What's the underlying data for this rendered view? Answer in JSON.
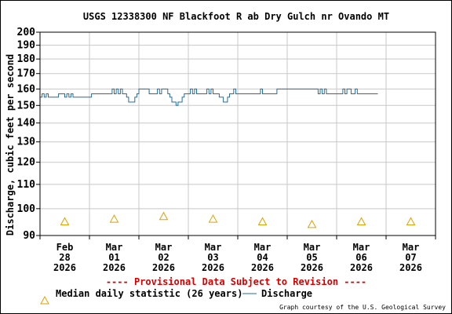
{
  "chart_data": {
    "type": "line",
    "title": "USGS 12338300 NF Blackfoot R ab Dry Gulch nr Ovando MT",
    "ylabel": "Discharge, cubic feet per second",
    "xlabel": "",
    "scale": "log",
    "ylim": [
      90,
      200
    ],
    "yticks": [
      90,
      100,
      110,
      120,
      130,
      140,
      150,
      160,
      170,
      180,
      190,
      200
    ],
    "ytick_labels": [
      "90",
      "100",
      "110",
      "120",
      "130",
      "140",
      "150",
      "160",
      "170",
      "180",
      "190",
      "200"
    ],
    "xlim": [
      "2026-02-28",
      "2026-03-08"
    ],
    "xticks": [
      {
        "lines": [
          "Feb",
          "28",
          "2026"
        ]
      },
      {
        "lines": [
          "Mar",
          "01",
          "2026"
        ]
      },
      {
        "lines": [
          "Mar",
          "02",
          "2026"
        ]
      },
      {
        "lines": [
          "Mar",
          "03",
          "2026"
        ]
      },
      {
        "lines": [
          "Mar",
          "04",
          "2026"
        ]
      },
      {
        "lines": [
          "Mar",
          "05",
          "2026"
        ]
      },
      {
        "lines": [
          "Mar",
          "06",
          "2026"
        ]
      },
      {
        "lines": [
          "Mar",
          "07",
          "2026"
        ]
      }
    ],
    "grid": true,
    "series": [
      {
        "name": "Discharge",
        "color": "#1f6f9f",
        "points": [
          [
            "2026-02-28T00:00",
            155
          ],
          [
            "2026-02-28T01:00",
            157
          ],
          [
            "2026-02-28T02:00",
            155
          ],
          [
            "2026-02-28T03:00",
            157
          ],
          [
            "2026-02-28T04:00",
            155
          ],
          [
            "2026-02-28T05:00",
            155
          ],
          [
            "2026-02-28T06:00",
            155
          ],
          [
            "2026-02-28T07:00",
            155
          ],
          [
            "2026-02-28T08:00",
            155
          ],
          [
            "2026-02-28T09:00",
            157
          ],
          [
            "2026-02-28T10:00",
            157
          ],
          [
            "2026-02-28T11:00",
            157
          ],
          [
            "2026-02-28T12:00",
            155
          ],
          [
            "2026-02-28T13:00",
            157
          ],
          [
            "2026-02-28T14:00",
            155
          ],
          [
            "2026-02-28T15:00",
            157
          ],
          [
            "2026-02-28T16:00",
            155
          ],
          [
            "2026-02-28T17:00",
            155
          ],
          [
            "2026-02-28T18:00",
            155
          ],
          [
            "2026-02-28T20:00",
            155
          ],
          [
            "2026-02-28T22:00",
            155
          ],
          [
            "2026-03-01T00:00",
            155
          ],
          [
            "2026-03-01T01:00",
            157
          ],
          [
            "2026-03-01T03:00",
            157
          ],
          [
            "2026-03-01T06:00",
            157
          ],
          [
            "2026-03-01T08:00",
            157
          ],
          [
            "2026-03-01T10:00",
            157
          ],
          [
            "2026-03-01T11:00",
            160
          ],
          [
            "2026-03-01T12:00",
            157
          ],
          [
            "2026-03-01T13:00",
            160
          ],
          [
            "2026-03-01T14:00",
            157
          ],
          [
            "2026-03-01T15:00",
            160
          ],
          [
            "2026-03-01T16:00",
            157
          ],
          [
            "2026-03-01T17:00",
            157
          ],
          [
            "2026-03-01T18:00",
            155
          ],
          [
            "2026-03-01T19:00",
            152
          ],
          [
            "2026-03-01T20:00",
            152
          ],
          [
            "2026-03-01T21:00",
            152
          ],
          [
            "2026-03-01T22:00",
            155
          ],
          [
            "2026-03-01T23:00",
            157
          ],
          [
            "2026-03-02T00:00",
            160
          ],
          [
            "2026-03-02T02:00",
            160
          ],
          [
            "2026-03-02T04:00",
            160
          ],
          [
            "2026-03-02T05:00",
            157
          ],
          [
            "2026-03-02T06:00",
            157
          ],
          [
            "2026-03-02T07:00",
            157
          ],
          [
            "2026-03-02T08:00",
            157
          ],
          [
            "2026-03-02T09:00",
            160
          ],
          [
            "2026-03-02T10:00",
            157
          ],
          [
            "2026-03-02T11:00",
            160
          ],
          [
            "2026-03-02T12:00",
            160
          ],
          [
            "2026-03-02T13:00",
            160
          ],
          [
            "2026-03-02T14:00",
            157
          ],
          [
            "2026-03-02T15:00",
            155
          ],
          [
            "2026-03-02T16:00",
            152
          ],
          [
            "2026-03-02T17:00",
            152
          ],
          [
            "2026-03-02T18:00",
            150
          ],
          [
            "2026-03-02T19:00",
            152
          ],
          [
            "2026-03-02T20:00",
            152
          ],
          [
            "2026-03-02T21:00",
            155
          ],
          [
            "2026-03-02T22:00",
            157
          ],
          [
            "2026-03-03T00:00",
            157
          ],
          [
            "2026-03-03T01:00",
            160
          ],
          [
            "2026-03-03T02:00",
            157
          ],
          [
            "2026-03-03T03:00",
            160
          ],
          [
            "2026-03-03T04:00",
            157
          ],
          [
            "2026-03-03T05:00",
            157
          ],
          [
            "2026-03-03T06:00",
            157
          ],
          [
            "2026-03-03T08:00",
            157
          ],
          [
            "2026-03-03T09:00",
            160
          ],
          [
            "2026-03-03T10:00",
            157
          ],
          [
            "2026-03-03T11:00",
            160
          ],
          [
            "2026-03-03T12:00",
            157
          ],
          [
            "2026-03-03T13:00",
            157
          ],
          [
            "2026-03-03T14:00",
            157
          ],
          [
            "2026-03-03T15:00",
            155
          ],
          [
            "2026-03-03T16:00",
            155
          ],
          [
            "2026-03-03T17:00",
            152
          ],
          [
            "2026-03-03T18:00",
            152
          ],
          [
            "2026-03-03T19:00",
            155
          ],
          [
            "2026-03-03T20:00",
            157
          ],
          [
            "2026-03-03T21:00",
            157
          ],
          [
            "2026-03-03T22:00",
            160
          ],
          [
            "2026-03-03T23:00",
            157
          ],
          [
            "2026-03-04T00:00",
            157
          ],
          [
            "2026-03-04T02:00",
            157
          ],
          [
            "2026-03-04T04:00",
            157
          ],
          [
            "2026-03-04T06:00",
            157
          ],
          [
            "2026-03-04T08:00",
            157
          ],
          [
            "2026-03-04T10:00",
            157
          ],
          [
            "2026-03-04T11:00",
            160
          ],
          [
            "2026-03-04T12:00",
            157
          ],
          [
            "2026-03-04T14:00",
            157
          ],
          [
            "2026-03-04T16:00",
            157
          ],
          [
            "2026-03-04T18:00",
            157
          ],
          [
            "2026-03-04T19:00",
            160
          ],
          [
            "2026-03-04T20:00",
            160
          ],
          [
            "2026-03-04T22:00",
            160
          ],
          [
            "2026-03-05T00:00",
            160
          ],
          [
            "2026-03-05T02:00",
            160
          ],
          [
            "2026-03-05T04:00",
            160
          ],
          [
            "2026-03-05T06:00",
            160
          ],
          [
            "2026-03-05T08:00",
            160
          ],
          [
            "2026-03-05T10:00",
            160
          ],
          [
            "2026-03-05T12:00",
            160
          ],
          [
            "2026-03-05T14:00",
            160
          ],
          [
            "2026-03-05T15:00",
            157
          ],
          [
            "2026-03-05T16:00",
            160
          ],
          [
            "2026-03-05T17:00",
            157
          ],
          [
            "2026-03-05T18:00",
            160
          ],
          [
            "2026-03-05T19:00",
            157
          ],
          [
            "2026-03-05T20:00",
            157
          ],
          [
            "2026-03-05T22:00",
            157
          ],
          [
            "2026-03-06T00:00",
            157
          ],
          [
            "2026-03-06T02:00",
            157
          ],
          [
            "2026-03-06T03:00",
            160
          ],
          [
            "2026-03-06T04:00",
            157
          ],
          [
            "2026-03-06T05:00",
            160
          ],
          [
            "2026-03-06T06:00",
            160
          ],
          [
            "2026-03-06T07:00",
            157
          ],
          [
            "2026-03-06T08:00",
            157
          ],
          [
            "2026-03-06T09:00",
            160
          ],
          [
            "2026-03-06T10:00",
            157
          ],
          [
            "2026-03-06T11:00",
            157
          ],
          [
            "2026-03-06T13:00",
            157
          ],
          [
            "2026-03-06T16:00",
            157
          ],
          [
            "2026-03-06T20:00",
            157
          ]
        ]
      }
    ],
    "medians": {
      "name": "Median daily statistic (26 years)",
      "color": "#e0a000",
      "points": [
        [
          "2026-02-28T12:00",
          95
        ],
        [
          "2026-03-01T12:00",
          96
        ],
        [
          "2026-03-02T12:00",
          97
        ],
        [
          "2026-03-03T12:00",
          96
        ],
        [
          "2026-03-04T12:00",
          95
        ],
        [
          "2026-03-05T12:00",
          94
        ],
        [
          "2026-03-06T12:00",
          95
        ],
        [
          "2026-03-07T12:00",
          95
        ]
      ]
    },
    "legend": {
      "placement": "bottom",
      "median_label": "Median daily statistic (26 years)",
      "discharge_label": "Discharge"
    }
  },
  "provisional_text": "---- Provisional Data Subject to Revision ----",
  "credit": "Graph courtesy of the U.S. Geological Survey",
  "colors": {
    "grid": "#c8c8c8",
    "provisional": "#d40000"
  }
}
